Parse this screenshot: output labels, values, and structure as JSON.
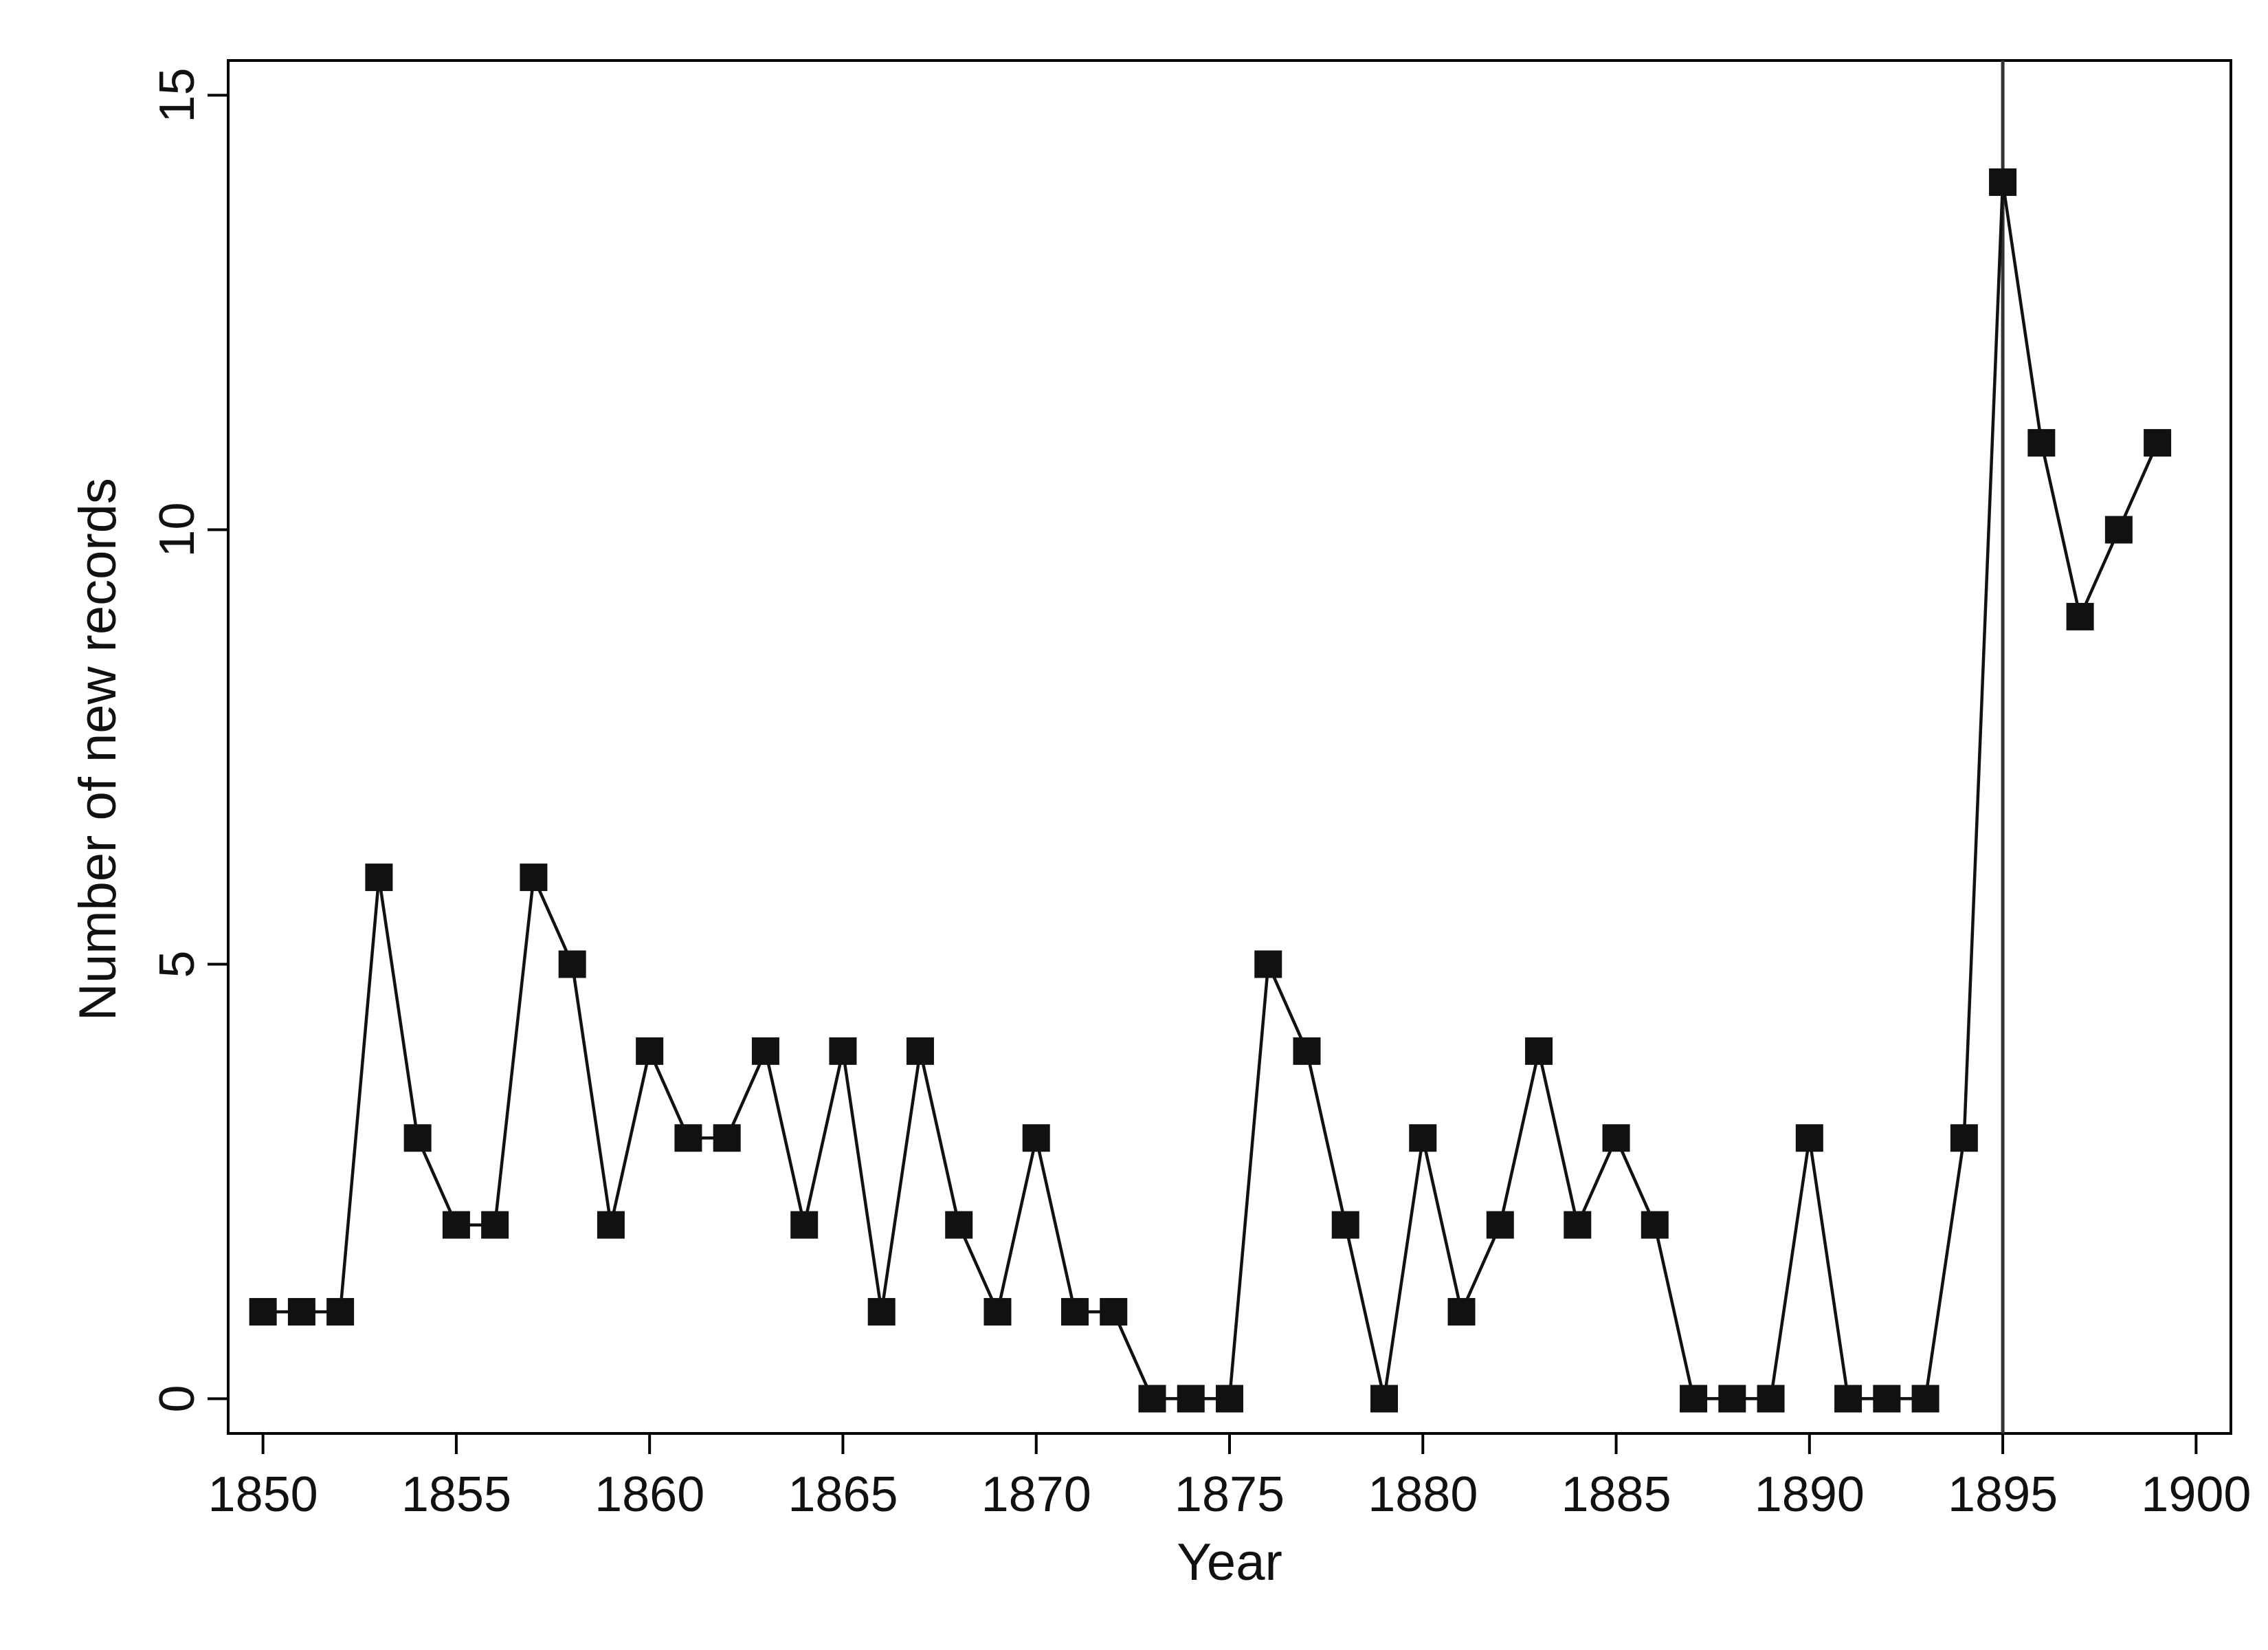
{
  "chart_data": {
    "type": "line",
    "title": "",
    "xlabel": "Year",
    "ylabel": "Number of new records",
    "xlim": [
      1849.1,
      1900.9
    ],
    "ylim": [
      -0.4,
      15.4
    ],
    "x_ticks": [
      1850,
      1855,
      1860,
      1865,
      1870,
      1875,
      1880,
      1885,
      1890,
      1895,
      1900
    ],
    "y_ticks": [
      0,
      5,
      10,
      15
    ],
    "grid": false,
    "marker": "square",
    "reference_line_x": 1895,
    "colors": {
      "series": "#111111",
      "reference_line": "#333333",
      "frame": "#000000"
    },
    "series": [
      {
        "x": [
          1850,
          1851,
          1852,
          1853,
          1854,
          1855,
          1856,
          1857,
          1858,
          1859,
          1860,
          1861,
          1862,
          1863,
          1864,
          1865,
          1866,
          1867,
          1868,
          1869,
          1870,
          1871,
          1872,
          1873,
          1874,
          1875,
          1876,
          1877,
          1878,
          1879,
          1880,
          1881,
          1882,
          1883,
          1884,
          1885,
          1886,
          1887,
          1888,
          1889,
          1890,
          1891,
          1892,
          1893,
          1894,
          1895,
          1896,
          1897,
          1898,
          1899
        ],
        "values": [
          1,
          1,
          1,
          6,
          3,
          2,
          2,
          6,
          5,
          2,
          4,
          3,
          3,
          4,
          2,
          4,
          1,
          4,
          2,
          1,
          3,
          1,
          1,
          0,
          0,
          0,
          5,
          4,
          2,
          0,
          3,
          1,
          2,
          4,
          2,
          3,
          2,
          0,
          0,
          0,
          3,
          0,
          0,
          0,
          3,
          14,
          11,
          9,
          10,
          11
        ]
      }
    ]
  }
}
